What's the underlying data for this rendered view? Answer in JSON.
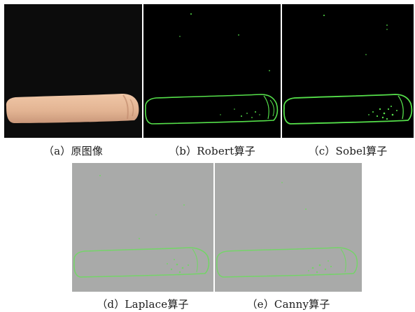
{
  "figure": {
    "captions": {
      "a": "（a）原图像",
      "b": "（b）Robert算子",
      "c": "（c）Sobel算子",
      "d": "（d）Laplace算子",
      "e": "（e）Canny算子"
    },
    "colors": {
      "original_background": "#0c0c0c",
      "specimen_fill": "#e2b392",
      "edge_background_dark": "#000000",
      "edge_background_gray": "#a9aaa9",
      "edge_green": "#55e04a",
      "edge_green_soft": "#7fd86b"
    }
  }
}
